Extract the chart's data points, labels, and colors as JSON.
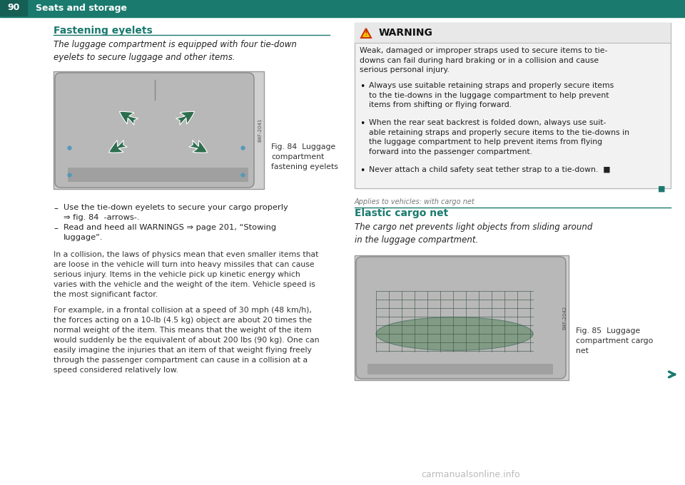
{
  "page_num": "90",
  "header_text": "Seats and storage",
  "header_bar_color": "#1a7a6e",
  "header_line_color": "#1a7a6e",
  "bg_color": "#ffffff",
  "section1_title": "Fastening eyelets",
  "section1_title_color": "#1a7a6e",
  "section1_divider_color": "#1a7a6e",
  "section1_intro": "The luggage compartment is equipped with four tie-down\neyelets to secure luggage and other items.",
  "fig84_caption": "Fig. 84  Luggage\ncompartment\nfastening eyelets",
  "fig84_code": "B4F-2041",
  "bullet1_dash": "–",
  "bullet1_text": "Use the tie-down eyelets to secure your cargo properly\n⇒ fig. 84  -arrows-.",
  "bullet2_dash": "–",
  "bullet2_text": "Read and heed all WARNINGS ⇒ page 201, “Stowing\nluggage”.",
  "para1": "In a collision, the laws of physics mean that even smaller items that\nare loose in the vehicle will turn into heavy missiles that can cause\nserious injury. Items in the vehicle pick up kinetic energy which\nvaries with the vehicle and the weight of the item. Vehicle speed is\nthe most significant factor.",
  "para2": "For example, in a frontal collision at a speed of 30 mph (48 km/h),\nthe forces acting on a 10-lb (4.5 kg) object are about 20 times the\nnormal weight of the item. This means that the weight of the item\nwould suddenly be the equivalent of about 200 lbs (90 kg). One can\neasily imagine the injuries that an item of that weight flying freely\nthrough the passenger compartment can cause in a collision at a\nspeed considered relatively low.",
  "warning_header": "WARNING",
  "warning_bg": "#f2f2f2",
  "warning_header_bg": "#e8e8e8",
  "warning_border": "#bbbbbb",
  "warning_text1": "Weak, damaged or improper straps used to secure items to tie-\ndowns can fail during hard braking or in a collision and cause\nserious personal injury.",
  "warning_bullet1": "Always use suitable retaining straps and properly secure items\nto the tie-downs in the luggage compartment to help prevent\nitems from shifting or flying forward.",
  "warning_bullet2": "When the rear seat backrest is folded down, always use suit-\nable retaining straps and properly secure items to the tie-downs in\nthe luggage compartment to help prevent items from flying\nforward into the passenger compartment.",
  "warning_bullet3": "Never attach a child safety seat tether strap to a tie-down.",
  "warning_end_square": "■",
  "applies_text": "Applies to vehicles: with cargo net",
  "section2_title": "Elastic cargo net",
  "section2_title_color": "#1a7a6e",
  "section2_divider_color": "#1a7a6e",
  "section2_intro": "The cargo net prevents light objects from sliding around\nin the luggage compartment.",
  "fig85_caption": "Fig. 85  Luggage\ncompartment cargo\nnet",
  "fig85_code": "B4F-2042",
  "arrow_color": "#2d6e4e",
  "arrow_fill": "#2d6e4e",
  "triangle_border": "#cc3300",
  "triangle_fill": "#ffcc00",
  "end_square_color": "#1a7a6e",
  "watermark": "carmanualsonline.info",
  "watermark_color": "#aaaaaa",
  "right_arrow_color": "#1a7a6e",
  "img_border_color": "#999999",
  "img_bg": "#c8c8c8",
  "img_inner_bg": "#b8b8b8"
}
